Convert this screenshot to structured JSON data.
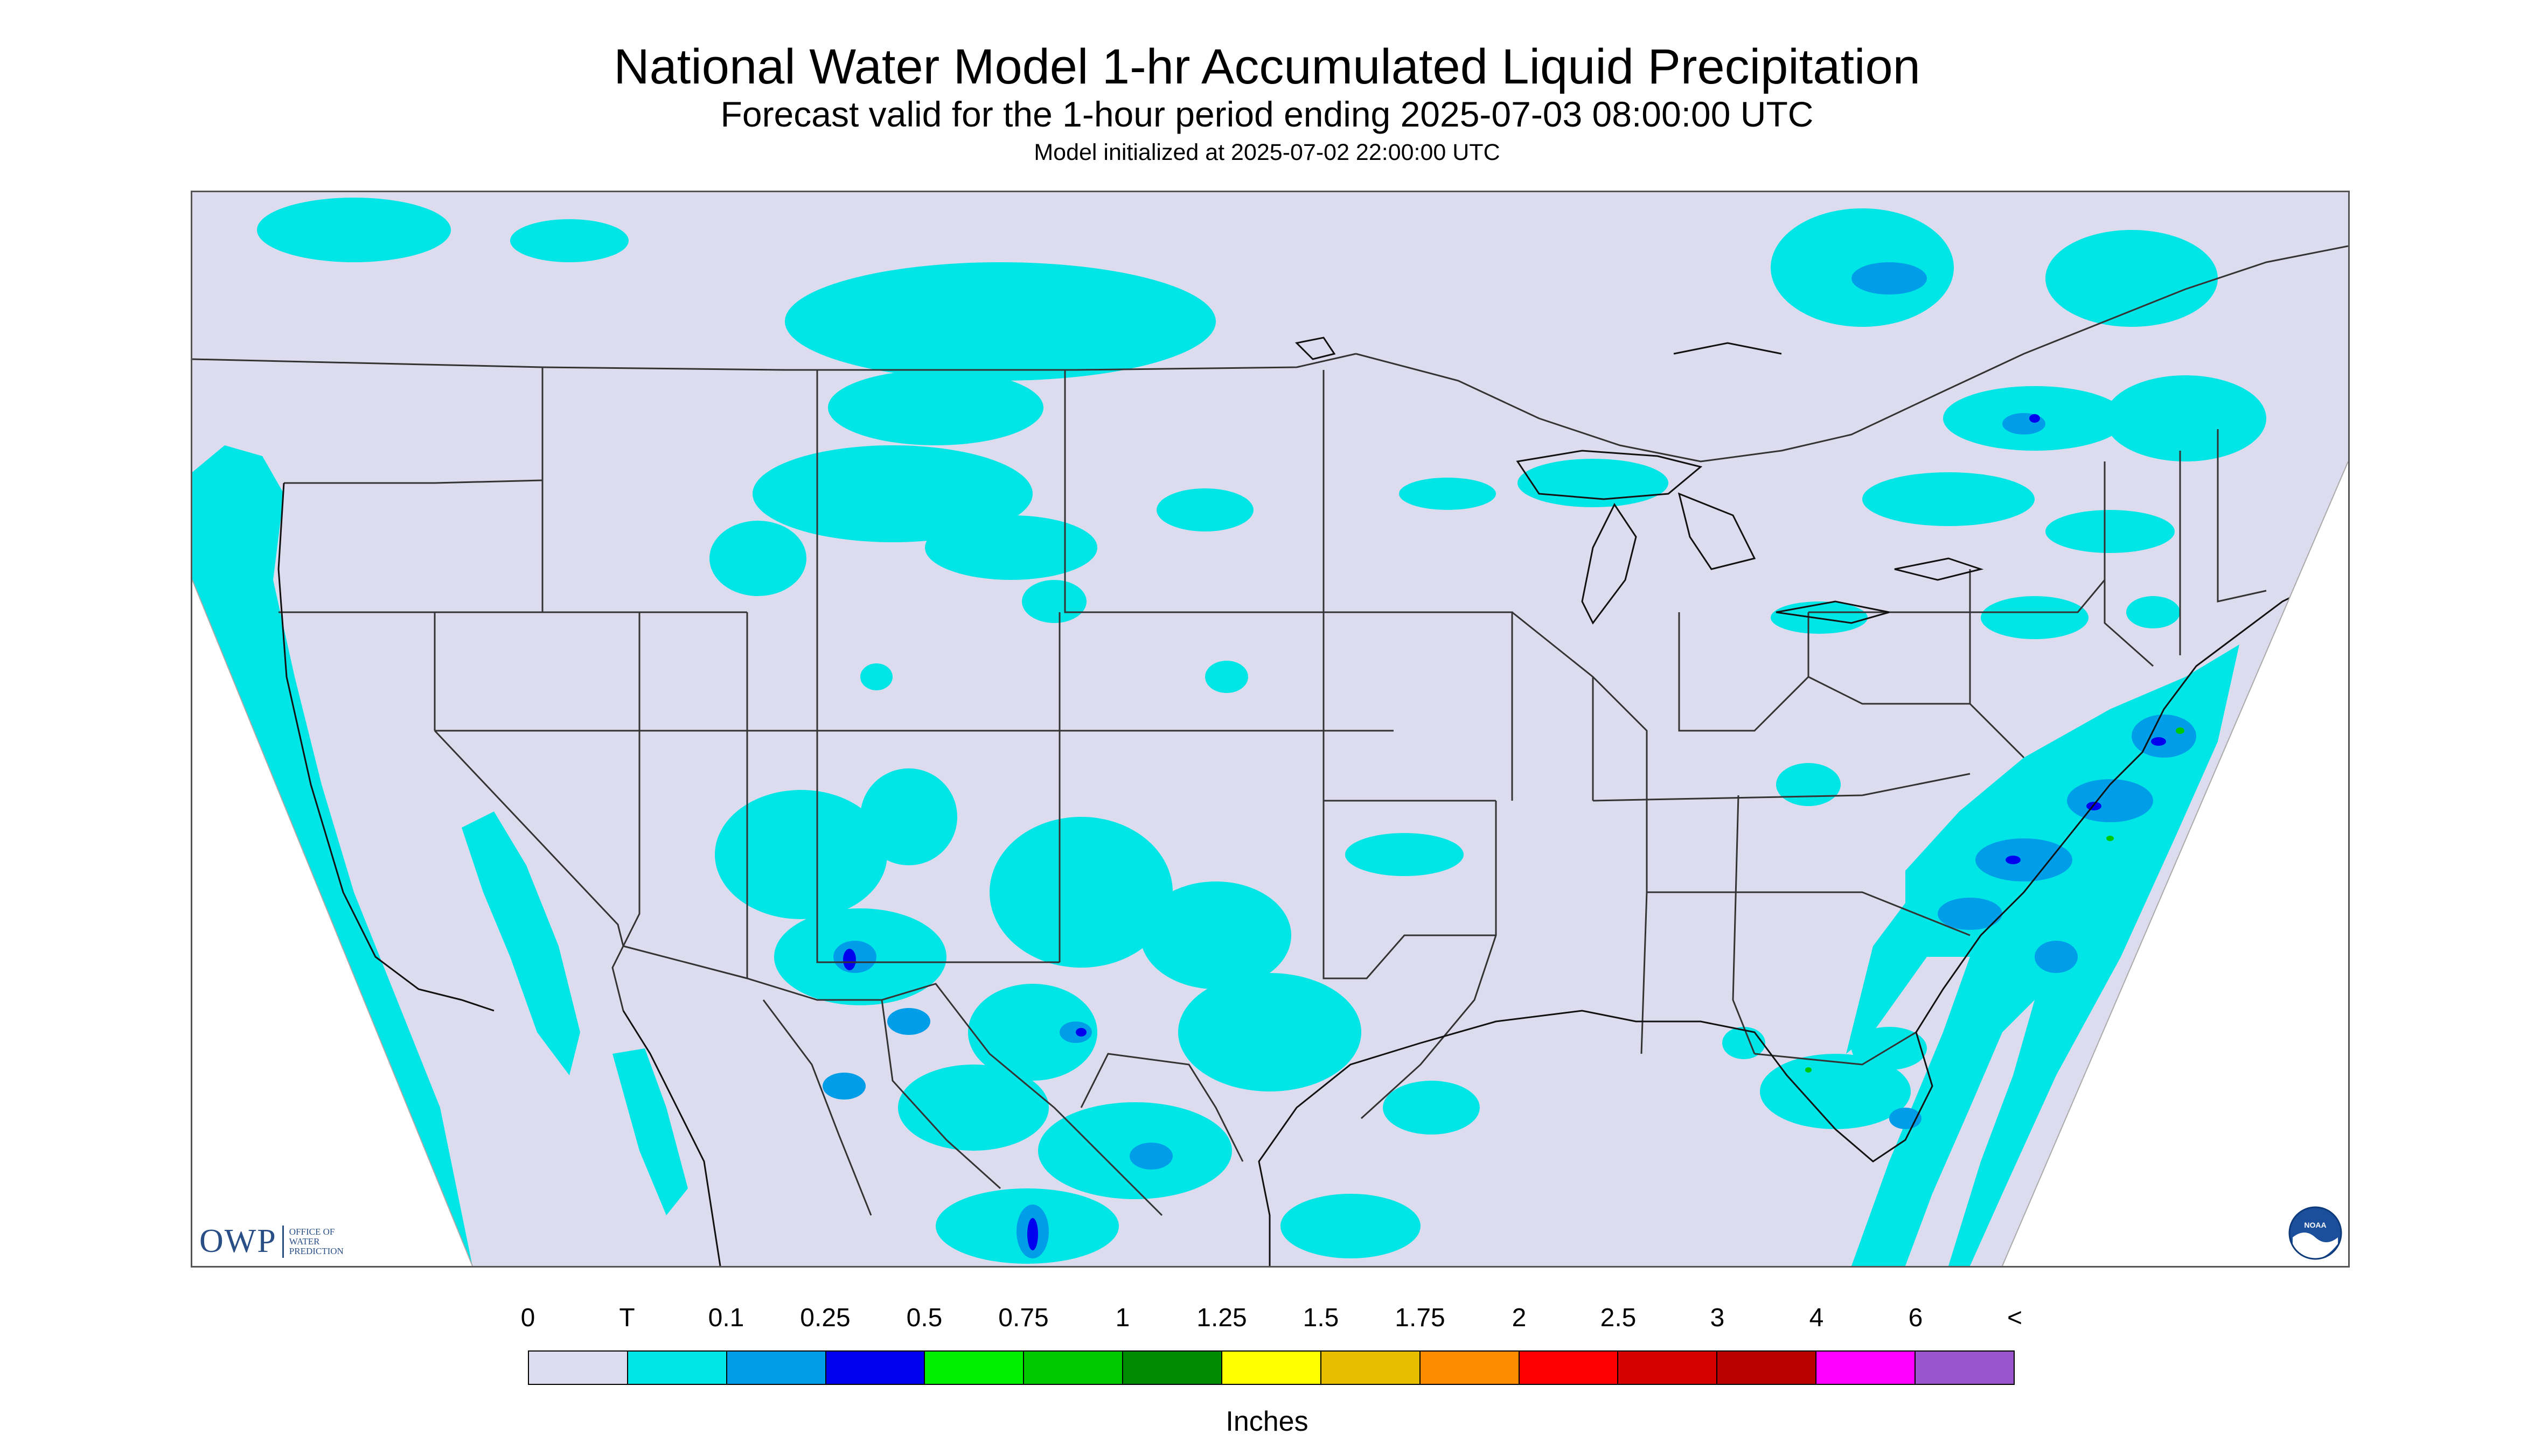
{
  "title": "National Water Model 1-hr Accumulated Liquid Precipitation",
  "subtitle": "Forecast valid for the 1-hour period ending 2025-07-03 08:00:00 UTC",
  "init_line": "Model initialized at 2025-07-02 22:00:00 UTC",
  "logo_owp": {
    "mark": "OWP",
    "lines": [
      "OFFICE OF",
      "WATER",
      "PREDICTION"
    ]
  },
  "logo_noaa": {
    "text": "NOAA"
  },
  "legend": {
    "labels": [
      "0",
      "T",
      "0.1",
      "0.25",
      "0.5",
      "0.75",
      "1",
      "1.25",
      "1.5",
      "1.75",
      "2",
      "2.5",
      "3",
      "4",
      "6",
      "<"
    ],
    "colors": [
      "#dcdcee",
      "#00e5e5",
      "#009ee8",
      "#0000ee",
      "#00ee00",
      "#00c800",
      "#008c00",
      "#ffff00",
      "#e6be00",
      "#ff8c00",
      "#ff0000",
      "#d50000",
      "#bb0000",
      "#ff00ff",
      "#9955cc"
    ],
    "units": "Inches"
  },
  "colors": {
    "no_precip": "#dcdcee",
    "trace": "#00e5e5",
    "light": "#009ee8",
    "moderate": "#0000ee",
    "heavy": "#00c800",
    "border": "#222222"
  }
}
